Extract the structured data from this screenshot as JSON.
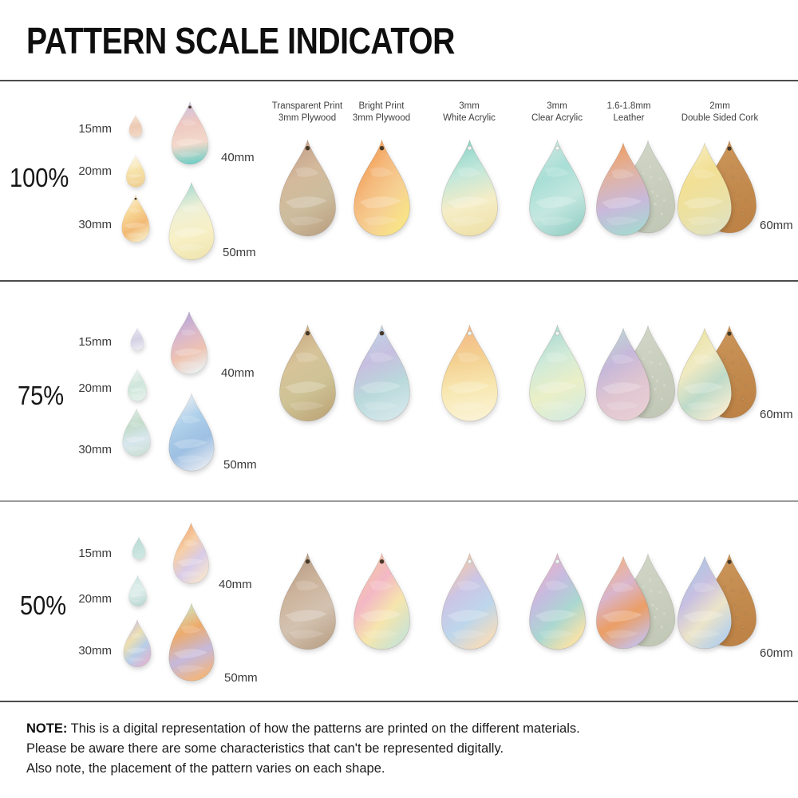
{
  "title": "PATTERN SCALE INDICATOR",
  "material_headers": [
    {
      "line1": "Transparent Print",
      "line2": "3mm Plywood"
    },
    {
      "line1": "Bright Print",
      "line2": "3mm Plywood"
    },
    {
      "line1": "3mm",
      "line2": "White Acrylic"
    },
    {
      "line1": "3mm",
      "line2": "Clear Acrylic"
    },
    {
      "line1": "1.6-1.8mm",
      "line2": "Leather"
    },
    {
      "line1": "2mm",
      "line2": "Double Sided Cork"
    }
  ],
  "rows": [
    {
      "scale_label": "100%",
      "size_label_right": "60mm",
      "left_drops": [
        {
          "size_label": "15mm",
          "colors": [
            "#f6e4d2",
            "#eccab4",
            "#f3d9c5"
          ],
          "angle": 175
        },
        {
          "size_label": "20mm",
          "colors": [
            "#fdf7e6",
            "#f6e2a8",
            "#efd094"
          ],
          "angle": 170
        },
        {
          "size_label": "30mm",
          "colors": [
            "#fbeed2",
            "#f7d695",
            "#f2ba76",
            "#f7e8c0"
          ],
          "angle": 160,
          "hole": "dark"
        },
        {
          "size_label": "40mm",
          "colors": [
            "#cdc4e5",
            "#eec8c0",
            "#f3d9cb",
            "#6ecfc6"
          ],
          "angle": 175,
          "hole": "dark"
        },
        {
          "size_label": "50mm",
          "colors": [
            "#a6dbd1",
            "#eef0d6",
            "#f8f0c6",
            "#f0e6b2"
          ],
          "angle": 170
        }
      ],
      "right_drops": [
        {
          "material": "transparent-print-plywood",
          "colors": [
            "#c2a089",
            "#d4b99c",
            "#ccbd9e",
            "#bfa687"
          ],
          "angle": 160,
          "hole": "dark"
        },
        {
          "material": "bright-print-plywood",
          "colors": [
            "#f2994c",
            "#f5b97c",
            "#f6cf92",
            "#f8e287"
          ],
          "angle": 140,
          "hole": "dark"
        },
        {
          "material": "white-acrylic",
          "colors": [
            "#8cd5c8",
            "#c2e7da",
            "#f5edc6",
            "#efe2ab"
          ],
          "angle": 170,
          "hole": "light"
        },
        {
          "material": "clear-acrylic",
          "colors": [
            "#cbe6e1",
            "#a9dfd6",
            "#c4e7e0",
            "#9cd3ca"
          ],
          "angle": 160,
          "hole": "light"
        },
        {
          "material": "leather",
          "colors": [
            "#ee9d61",
            "#e0b3a4",
            "#c8b9db",
            "#a8d7d1"
          ],
          "angle": 170,
          "back": {
            "colors": [
              "#d0d5c6",
              "#c2c8b6"
            ],
            "angle": 170,
            "texture": "suede"
          }
        },
        {
          "material": "double-sided-cork",
          "colors": [
            "#f5ecbe",
            "#f2e094",
            "#ece1a4",
            "#e0e1bf"
          ],
          "angle": 160,
          "back": {
            "colors": [
              "#ca9459",
              "#bd8245"
            ],
            "angle": 170,
            "texture": "cork",
            "hole": "dark"
          }
        }
      ]
    },
    {
      "scale_label": "75%",
      "size_label_right": "60mm",
      "left_drops": [
        {
          "size_label": "15mm",
          "colors": [
            "#e6e3f0",
            "#d5d1e5",
            "#edebf3"
          ],
          "angle": 170
        },
        {
          "size_label": "20mm",
          "colors": [
            "#ebf4ef",
            "#cfe6da",
            "#e3f0e9"
          ],
          "angle": 165
        },
        {
          "size_label": "30mm",
          "colors": [
            "#dbebe3",
            "#c3dccb",
            "#d8e7ee",
            "#cce0d5"
          ],
          "angle": 170
        },
        {
          "size_label": "40mm",
          "colors": [
            "#b6a6d6",
            "#d9b7cd",
            "#eec3b1",
            "#ebeeef"
          ],
          "angle": 165
        },
        {
          "size_label": "50mm",
          "colors": [
            "#e9edf3",
            "#aed0ea",
            "#9ec0e3",
            "#dee6f0"
          ],
          "angle": 160
        }
      ],
      "right_drops": [
        {
          "material": "transparent-print-plywood",
          "colors": [
            "#c9ab82",
            "#d7c399",
            "#cec396",
            "#c0aa7c"
          ],
          "angle": 160,
          "hole": "dark"
        },
        {
          "material": "bright-print-plywood",
          "colors": [
            "#bed4e5",
            "#c7bfe0",
            "#b9d9db",
            "#d4e7eb"
          ],
          "angle": 165,
          "hole": "dark"
        },
        {
          "material": "white-acrylic",
          "colors": [
            "#f5b988",
            "#f4cf90",
            "#f8e8b2",
            "#fbf3d6"
          ],
          "angle": 175,
          "hole": "light"
        },
        {
          "material": "clear-acrylic",
          "colors": [
            "#aad9d0",
            "#d0ead9",
            "#eaefc6",
            "#d7ecde"
          ],
          "angle": 165,
          "hole": "light"
        },
        {
          "material": "leather",
          "colors": [
            "#bed4d4",
            "#c7b8da",
            "#dfc5d0",
            "#e7ced5"
          ],
          "angle": 160,
          "back": {
            "colors": [
              "#d0d5c6",
              "#c2c8b6"
            ],
            "angle": 170,
            "texture": "suede"
          }
        },
        {
          "material": "double-sided-cork",
          "colors": [
            "#eae3a4",
            "#f0eac2",
            "#bedac9",
            "#f1ebd1"
          ],
          "angle": 155,
          "back": {
            "colors": [
              "#ca9459",
              "#bd8245"
            ],
            "angle": 170,
            "texture": "cork",
            "hole": "dark"
          }
        }
      ]
    },
    {
      "scale_label": "50%",
      "size_label_right": "60mm",
      "left_drops": [
        {
          "size_label": "15mm",
          "colors": [
            "#b9dad5",
            "#d0e8e3"
          ],
          "angle": 170
        },
        {
          "size_label": "20mm",
          "colors": [
            "#cce4e0",
            "#e0efeb",
            "#bcd8d3"
          ],
          "angle": 170
        },
        {
          "size_label": "30mm",
          "colors": [
            "#cbc0e2",
            "#ecdfb0",
            "#b8cee8",
            "#dab8d3"
          ],
          "angle": 150
        },
        {
          "size_label": "40mm",
          "colors": [
            "#f0a771",
            "#f6cfa7",
            "#d8cce9",
            "#f4e2d1"
          ],
          "angle": 150
        },
        {
          "size_label": "50mm",
          "colors": [
            "#cde5c3",
            "#eeab6b",
            "#c5b9dc",
            "#f2b57d"
          ],
          "angle": 165
        }
      ],
      "right_drops": [
        {
          "material": "transparent-print-plywood",
          "colors": [
            "#b89d85",
            "#ccb39b",
            "#d3c2b1",
            "#bfa78e"
          ],
          "angle": 160,
          "hole": "dark"
        },
        {
          "material": "bright-print-plywood",
          "colors": [
            "#f2c6a5",
            "#f3b8c5",
            "#f6e5ad",
            "#cfe4ce"
          ],
          "angle": 145,
          "hole": "dark"
        },
        {
          "material": "white-acrylic",
          "colors": [
            "#f6c8a7",
            "#ccc5e5",
            "#bdd6eb",
            "#f2dcbf"
          ],
          "angle": 155,
          "hole": "light"
        },
        {
          "material": "clear-acrylic",
          "colors": [
            "#ebb2ca",
            "#c5bce0",
            "#aad7d1",
            "#f4e2ab"
          ],
          "angle": 150,
          "hole": "light"
        },
        {
          "material": "leather",
          "colors": [
            "#f2b288",
            "#d9b5cd",
            "#eb9e65",
            "#cabddc"
          ],
          "angle": 160,
          "back": {
            "colors": [
              "#d0d5c6",
              "#c2c8b6"
            ],
            "angle": 170,
            "texture": "suede"
          }
        },
        {
          "material": "double-sided-cork",
          "colors": [
            "#adc7e5",
            "#c8c0e1",
            "#ece4c8",
            "#bbd2e7"
          ],
          "angle": 150,
          "back": {
            "colors": [
              "#ca9459",
              "#bd8245"
            ],
            "angle": 170,
            "texture": "cork",
            "hole": "dark"
          }
        }
      ]
    }
  ],
  "note": {
    "label": "NOTE:",
    "lines": [
      "This is a digital representation of how the patterns are printed on the different materials.",
      "Please be aware there are some characteristics that can't be represented digitally.",
      "Also note, the placement of the pattern varies on each shape."
    ]
  },
  "colors": {
    "background": "#ffffff",
    "title_text": "#0f0f0f",
    "body_text": "#1c1c1c",
    "label_text": "#3a3a3a",
    "divider_dark": "#4c4c4c",
    "divider_light": "#9c9c9c",
    "hole_dark": "#463828",
    "hole_light": "#f2f5f3"
  }
}
